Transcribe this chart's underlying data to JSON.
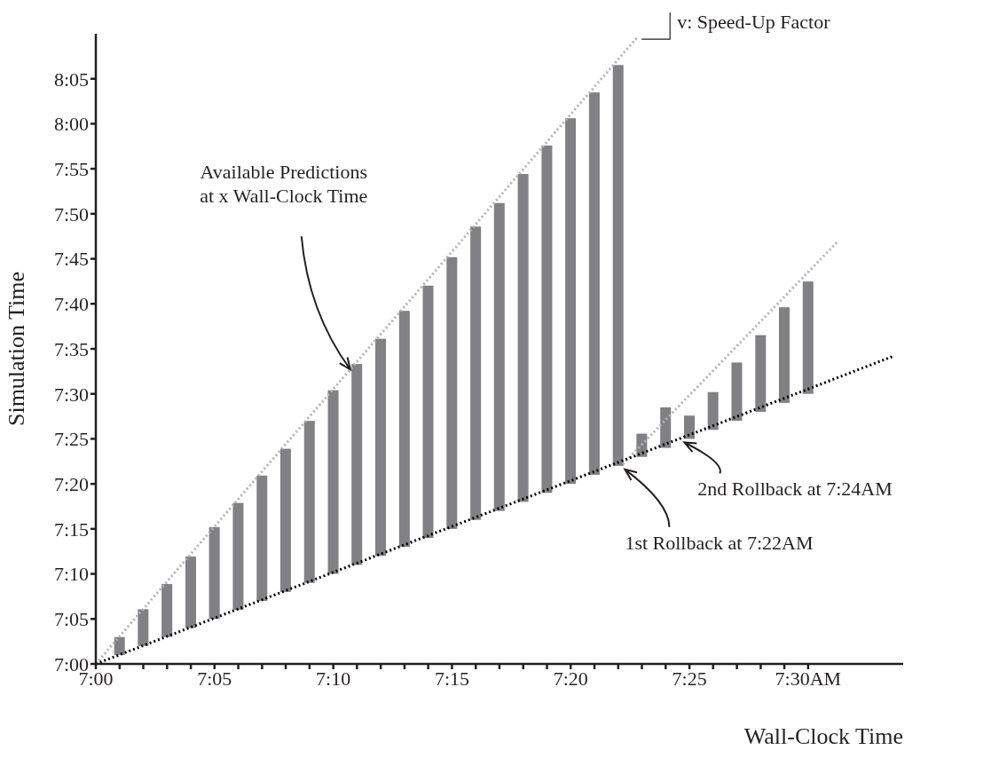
{
  "chart_data": {
    "type": "bar",
    "xlabel": "Wall-Clock Time",
    "ylabel": "Simulation Time",
    "x": [
      7.0167,
      7.0333,
      7.05,
      7.0667,
      7.0833,
      7.1,
      7.1167,
      7.1333,
      7.15,
      7.1667,
      7.1833,
      7.2,
      7.2167,
      7.2333,
      7.25,
      7.2667,
      7.2833,
      7.3,
      7.3167,
      7.3333,
      7.35,
      7.3667,
      7.3833,
      7.4,
      7.4167,
      7.4333,
      7.45,
      7.4667,
      7.4833,
      7.5
    ],
    "series": [
      {
        "color": "#808085",
        "base": [
          7.0167,
          7.0333,
          7.05,
          7.0667,
          7.0833,
          7.1,
          7.1167,
          7.1333,
          7.15,
          7.1667,
          7.1833,
          7.2,
          7.2167,
          7.2333,
          7.25,
          7.2667,
          7.2833,
          7.3,
          7.3167,
          7.3333,
          7.35,
          7.3667,
          7.3833,
          7.4,
          7.4167,
          7.4333,
          7.45,
          7.4667,
          7.4833,
          7.5
        ],
        "values": [
          0.033,
          0.068,
          0.098,
          0.132,
          0.17,
          0.198,
          0.232,
          0.265,
          0.3,
          0.34,
          0.372,
          0.402,
          0.437,
          0.467,
          0.503,
          0.543,
          0.57,
          0.607,
          0.643,
          0.677,
          0.708,
          0.742,
          0.043,
          0.075,
          0.043,
          0.07,
          0.108,
          0.142,
          0.177,
          0.208
        ]
      },
      {
        "type": "line",
        "color": "#b3b3b3",
        "line_style": "dotted",
        "x": [
          7,
          7.38
        ],
        "values": [
          7,
          8.16
        ]
      },
      {
        "type": "line",
        "color": "#b3b3b3",
        "line_style": "dotted",
        "x": [
          7.37,
          7.52
        ],
        "values": [
          7.37,
          7.78
        ]
      },
      {
        "type": "line",
        "color": "#000000",
        "line_style": "dotted",
        "x": [
          7,
          7.56
        ],
        "values": [
          7,
          7.57
        ]
      }
    ],
    "marker": "none",
    "xlim": [
      7,
      7.5667
    ],
    "ylim": [
      7,
      8.1667
    ],
    "xticks": [
      {
        "value": 7,
        "label": "7:00"
      },
      {
        "value": 7.0167,
        "label": null
      },
      {
        "value": 7.0333,
        "label": null
      },
      {
        "value": 7.05,
        "label": null
      },
      {
        "value": 7.0667,
        "label": null
      },
      {
        "value": 7.0833,
        "label": "7:05"
      },
      {
        "value": 7.1,
        "label": null
      },
      {
        "value": 7.1167,
        "label": null
      },
      {
        "value": 7.1333,
        "label": null
      },
      {
        "value": 7.15,
        "label": null
      },
      {
        "value": 7.1667,
        "label": "7:10"
      },
      {
        "value": 7.1833,
        "label": null
      },
      {
        "value": 7.2,
        "label": null
      },
      {
        "value": 7.2167,
        "label": null
      },
      {
        "value": 7.2333,
        "label": null
      },
      {
        "value": 7.25,
        "label": "7:15"
      },
      {
        "value": 7.2667,
        "label": null
      },
      {
        "value": 7.2833,
        "label": null
      },
      {
        "value": 7.3,
        "label": null
      },
      {
        "value": 7.3167,
        "label": null
      },
      {
        "value": 7.3333,
        "label": "7:20"
      },
      {
        "value": 7.35,
        "label": null
      },
      {
        "value": 7.3667,
        "label": null
      },
      {
        "value": 7.3833,
        "label": null
      },
      {
        "value": 7.4,
        "label": null
      },
      {
        "value": 7.4167,
        "label": "7:25"
      },
      {
        "value": 7.4333,
        "label": null
      },
      {
        "value": 7.45,
        "label": null
      },
      {
        "value": 7.4667,
        "label": null
      },
      {
        "value": 7.4833,
        "label": null
      },
      {
        "value": 7.5,
        "label": "7:30AM"
      }
    ],
    "yticks": [
      {
        "value": 7,
        "label": "7:00"
      },
      {
        "value": 7.0833,
        "label": "7:05"
      },
      {
        "value": 7.1667,
        "label": "7:10"
      },
      {
        "value": 7.25,
        "label": "7:15"
      },
      {
        "value": 7.3333,
        "label": "7:20"
      },
      {
        "value": 7.4167,
        "label": "7:25"
      },
      {
        "value": 7.5,
        "label": "7:30"
      },
      {
        "value": 7.5833,
        "label": "7:35"
      },
      {
        "value": 7.6667,
        "label": "7:40"
      },
      {
        "value": 7.75,
        "label": "7:45"
      },
      {
        "value": 7.8333,
        "label": "7:50"
      },
      {
        "value": 7.9167,
        "label": "7:55"
      },
      {
        "value": 8,
        "label": "8:00"
      },
      {
        "value": 8.0833,
        "label": "8:05"
      }
    ],
    "grid": false,
    "legend": false,
    "annotations": [
      "v: Speed-Up Factor",
      "Available Predictions\nat x Wall-Clock Time",
      {
        "text": "1st Rollback at 7:22AM",
        "x": 7.3683,
        "y": 7.3683
      },
      {
        "text": "2nd Rollback at 7:24AM",
        "x": 7.41,
        "y": 7.41
      }
    ]
  }
}
